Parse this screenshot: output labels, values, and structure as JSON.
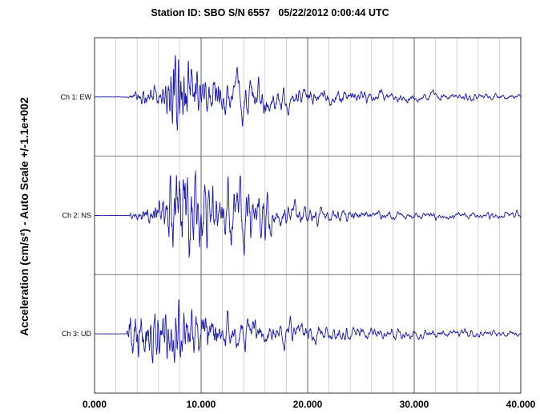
{
  "chart_data": {
    "type": "line",
    "title": "Station ID: SBO S/N 6557   05/22/2012 0:00:44 UTC",
    "ylabel": "Acceleration (cm/s²) - Auto Scale +/-1.1e+002",
    "xlim": [
      0,
      40
    ],
    "x_tick_labels": [
      "0.000",
      "10.000",
      "20.000",
      "30.000",
      "40.000"
    ],
    "x_major_ticks": [
      0,
      10,
      20,
      30,
      40
    ],
    "x_minor_step": 2,
    "grid": true,
    "line_color": "#1a1aa0",
    "channels": [
      {
        "name": "Ch 1: EW",
        "amplitude_envelope": [
          [
            0,
            0.003
          ],
          [
            3.0,
            0.003
          ],
          [
            3.8,
            0.1
          ],
          [
            4.5,
            0.15
          ],
          [
            6.5,
            0.25
          ],
          [
            7.2,
            0.85
          ],
          [
            7.6,
            1.0
          ],
          [
            8.0,
            0.8
          ],
          [
            9.0,
            0.55
          ],
          [
            10.0,
            0.4
          ],
          [
            12.0,
            0.3
          ],
          [
            14.0,
            0.25
          ],
          [
            17.0,
            0.2
          ],
          [
            20.0,
            0.13
          ],
          [
            25.0,
            0.08
          ],
          [
            30.0,
            0.06
          ],
          [
            35.0,
            0.05
          ],
          [
            40.0,
            0.04
          ]
        ]
      },
      {
        "name": "Ch 2: NS",
        "amplitude_envelope": [
          [
            0,
            0.003
          ],
          [
            3.0,
            0.003
          ],
          [
            3.8,
            0.08
          ],
          [
            5.0,
            0.15
          ],
          [
            6.5,
            0.3
          ],
          [
            7.2,
            0.8
          ],
          [
            7.8,
            0.9
          ],
          [
            8.5,
            1.0
          ],
          [
            9.0,
            0.85
          ],
          [
            10.0,
            0.55
          ],
          [
            12.0,
            0.4
          ],
          [
            15.0,
            0.45
          ],
          [
            16.0,
            0.35
          ],
          [
            18.0,
            0.15
          ],
          [
            22.0,
            0.08
          ],
          [
            30.0,
            0.05
          ],
          [
            40.0,
            0.04
          ]
        ]
      },
      {
        "name": "Ch 3: UD",
        "amplitude_envelope": [
          [
            0,
            0.003
          ],
          [
            3.0,
            0.003
          ],
          [
            3.3,
            0.6
          ],
          [
            4.0,
            0.6
          ],
          [
            5.5,
            0.55
          ],
          [
            7.0,
            0.5
          ],
          [
            8.0,
            0.55
          ],
          [
            9.0,
            0.45
          ],
          [
            10.0,
            0.35
          ],
          [
            12.0,
            0.25
          ],
          [
            15.0,
            0.18
          ],
          [
            20.0,
            0.12
          ],
          [
            25.0,
            0.08
          ],
          [
            30.0,
            0.06
          ],
          [
            40.0,
            0.04
          ]
        ]
      }
    ]
  }
}
